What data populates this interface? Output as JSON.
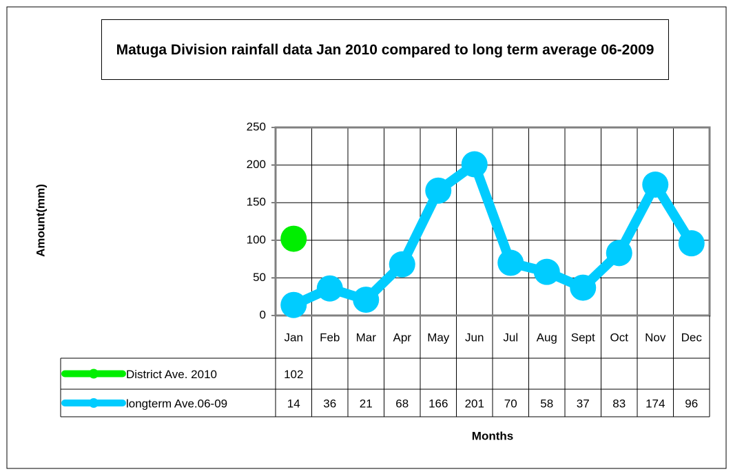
{
  "chart_data": {
    "type": "line",
    "title": "Matuga Division rainfall data Jan 2010 compared to long term average 06-2009",
    "x_label": "Months",
    "y_label": "Amount(mm)",
    "categories": [
      "Jan",
      "Feb",
      "Mar",
      "Apr",
      "May",
      "Jun",
      "Jul",
      "Aug",
      "Sept",
      "Oct",
      "Nov",
      "Dec"
    ],
    "series": [
      {
        "name": "District Ave. 2010",
        "color": "#00ee00",
        "values": [
          102,
          null,
          null,
          null,
          null,
          null,
          null,
          null,
          null,
          null,
          null,
          null
        ]
      },
      {
        "name": "longterm Ave.06-09",
        "color": "#00ccff",
        "values": [
          14,
          36,
          21,
          68,
          166,
          201,
          70,
          58,
          37,
          83,
          174,
          96
        ]
      }
    ],
    "ylim": [
      0,
      250
    ],
    "yticks": [
      0,
      50,
      100,
      150,
      200,
      250
    ],
    "grid": true,
    "data_table": true
  }
}
